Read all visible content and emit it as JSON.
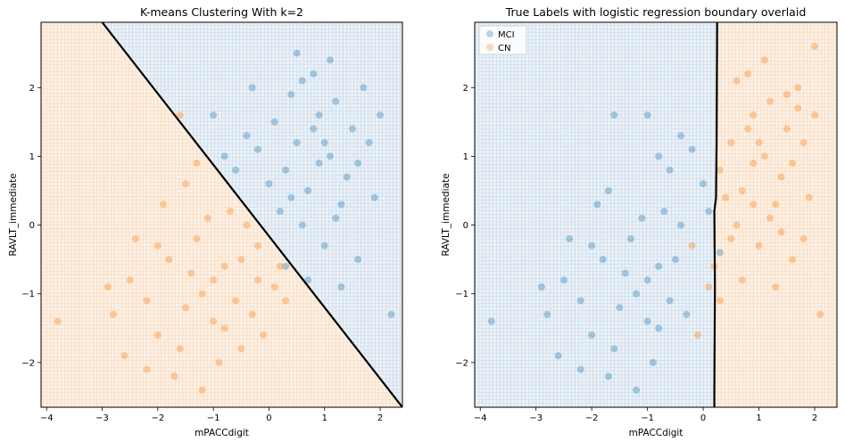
{
  "chart_data": [
    {
      "type": "scatter",
      "title": "K-means Clustering With k=2",
      "xlabel": "mPACCdigit",
      "ylabel": "RAVLT_immediate",
      "xlim": [
        -4.1,
        2.4
      ],
      "ylim": [
        -2.65,
        2.95
      ],
      "xticks": [
        -4,
        -3,
        -2,
        -1,
        0,
        1,
        2
      ],
      "yticks": [
        -2,
        -1,
        0,
        1,
        2
      ],
      "grid": false,
      "legend": "none",
      "boundary": {
        "type": "linear",
        "points": [
          [
            -3.0,
            2.95
          ],
          [
            2.4,
            -2.65
          ]
        ],
        "color": "#000000"
      },
      "regions": [
        {
          "side": "upper-right",
          "color": "#1f77b4"
        },
        {
          "side": "lower-left",
          "color": "#ff7f0e"
        }
      ],
      "series": [
        {
          "color": "#1f77b4",
          "values": [
            [
              0.3,
              0.8
            ],
            [
              0.5,
              1.2
            ],
            [
              0.7,
              0.5
            ],
            [
              0.9,
              1.6
            ],
            [
              1.1,
              1.0
            ],
            [
              1.3,
              0.3
            ],
            [
              0.4,
              1.9
            ],
            [
              0.8,
              2.2
            ],
            [
              1.2,
              1.8
            ],
            [
              1.5,
              1.4
            ],
            [
              1.7,
              2.0
            ],
            [
              0.2,
              0.2
            ],
            [
              0.0,
              0.6
            ],
            [
              -0.2,
              1.1
            ],
            [
              0.6,
              0.0
            ],
            [
              1.0,
              -0.3
            ],
            [
              1.4,
              0.7
            ],
            [
              1.6,
              -0.5
            ],
            [
              1.8,
              1.2
            ],
            [
              0.1,
              1.5
            ],
            [
              -0.4,
              1.3
            ],
            [
              0.9,
              0.9
            ],
            [
              1.1,
              2.4
            ],
            [
              0.3,
              -0.6
            ],
            [
              0.7,
              -0.8
            ],
            [
              1.3,
              -0.9
            ],
            [
              1.9,
              0.4
            ],
            [
              2.0,
              1.6
            ],
            [
              -0.6,
              0.8
            ],
            [
              0.5,
              2.5
            ],
            [
              -1.0,
              1.6
            ],
            [
              -0.8,
              1.0
            ],
            [
              1.2,
              0.1
            ],
            [
              0.4,
              0.4
            ],
            [
              0.8,
              1.4
            ],
            [
              1.6,
              0.9
            ],
            [
              2.2,
              -1.3
            ],
            [
              -0.3,
              2.0
            ],
            [
              0.6,
              2.1
            ],
            [
              1.0,
              1.2
            ]
          ]
        },
        {
          "color": "#ff7f0e",
          "values": [
            [
              -1.0,
              -0.8
            ],
            [
              -0.5,
              -0.5
            ],
            [
              -1.5,
              -1.2
            ],
            [
              -0.2,
              -0.3
            ],
            [
              -1.8,
              -0.5
            ],
            [
              -2.2,
              -1.1
            ],
            [
              -0.8,
              -1.5
            ],
            [
              -1.3,
              -0.2
            ],
            [
              -0.6,
              -1.1
            ],
            [
              -2.5,
              -0.8
            ],
            [
              -1.1,
              0.1
            ],
            [
              0.1,
              -0.9
            ],
            [
              -0.3,
              -1.3
            ],
            [
              -1.6,
              -1.8
            ],
            [
              -2.0,
              -1.6
            ],
            [
              -0.9,
              -2.0
            ],
            [
              -1.4,
              -0.7
            ],
            [
              -2.8,
              -1.3
            ],
            [
              -0.4,
              0.0
            ],
            [
              0.2,
              -0.6
            ],
            [
              -1.2,
              -1.0
            ],
            [
              -1.7,
              -2.2
            ],
            [
              -3.8,
              -1.4
            ],
            [
              -2.4,
              -0.2
            ],
            [
              -0.7,
              0.2
            ],
            [
              -1.9,
              0.3
            ],
            [
              -0.1,
              -1.6
            ],
            [
              -1.0,
              -1.4
            ],
            [
              -2.6,
              -1.9
            ],
            [
              0.3,
              -1.1
            ],
            [
              -1.5,
              0.6
            ],
            [
              -0.8,
              -0.6
            ],
            [
              -2.2,
              -2.1
            ],
            [
              -1.2,
              -2.4
            ],
            [
              -0.5,
              -1.8
            ],
            [
              -1.6,
              1.6
            ],
            [
              -2.9,
              -0.9
            ],
            [
              -1.3,
              0.9
            ],
            [
              -0.2,
              -0.8
            ],
            [
              -2.0,
              -0.3
            ]
          ]
        }
      ]
    },
    {
      "type": "scatter",
      "title": "True Labels with logistic regression boundary overlaid",
      "xlabel": "mPACCdigit",
      "ylabel": "RAVLT_immediate",
      "xlim": [
        -4.1,
        2.4
      ],
      "ylim": [
        -2.65,
        2.95
      ],
      "xticks": [
        -4,
        -3,
        -2,
        -1,
        0,
        1,
        2
      ],
      "yticks": [
        -2,
        -1,
        0,
        1,
        2
      ],
      "grid": false,
      "legend": "top-left",
      "boundary": {
        "type": "near-vertical",
        "points": [
          [
            0.2,
            -2.65
          ],
          [
            0.2,
            -2.4
          ],
          [
            0.21,
            -0.9
          ],
          [
            0.2,
            0.2
          ],
          [
            0.23,
            0.4
          ],
          [
            0.24,
            1.2
          ],
          [
            0.25,
            2.95
          ]
        ],
        "color": "#000000"
      },
      "regions": [
        {
          "side": "left",
          "color": "#1f77b4"
        },
        {
          "side": "right",
          "color": "#ff7f0e"
        }
      ],
      "series": [
        {
          "name": "MCI",
          "color": "#1f77b4",
          "values": [
            [
              -1.0,
              -0.8
            ],
            [
              -1.5,
              -1.2
            ],
            [
              -0.5,
              -0.5
            ],
            [
              -1.8,
              -0.5
            ],
            [
              -2.2,
              -1.1
            ],
            [
              -0.8,
              -1.5
            ],
            [
              -1.3,
              -0.2
            ],
            [
              -0.6,
              -1.1
            ],
            [
              -2.5,
              -0.8
            ],
            [
              -1.1,
              0.1
            ],
            [
              -0.3,
              -1.3
            ],
            [
              -1.6,
              -1.8
            ],
            [
              -2.0,
              -1.6
            ],
            [
              -0.9,
              -2.0
            ],
            [
              -1.4,
              -0.7
            ],
            [
              -2.8,
              -1.3
            ],
            [
              -0.4,
              0.0
            ],
            [
              -1.2,
              -1.0
            ],
            [
              -1.7,
              -2.2
            ],
            [
              -3.8,
              -1.4
            ],
            [
              -2.4,
              -0.2
            ],
            [
              -0.7,
              0.2
            ],
            [
              -1.9,
              0.3
            ],
            [
              -1.0,
              -1.4
            ],
            [
              -2.6,
              -1.9
            ],
            [
              -0.8,
              -0.6
            ],
            [
              -2.2,
              -2.1
            ],
            [
              -1.2,
              -2.4
            ],
            [
              -1.6,
              1.6
            ],
            [
              -2.9,
              -0.9
            ],
            [
              -1.0,
              1.6
            ],
            [
              -0.8,
              1.0
            ],
            [
              -0.2,
              1.1
            ],
            [
              0.0,
              0.6
            ],
            [
              -0.4,
              1.3
            ],
            [
              -1.7,
              0.5
            ],
            [
              0.1,
              0.2
            ],
            [
              -0.6,
              0.8
            ],
            [
              -2.0,
              -0.3
            ],
            [
              0.3,
              -0.4
            ]
          ]
        },
        {
          "name": "CN",
          "color": "#ff7f0e",
          "values": [
            [
              0.3,
              0.8
            ],
            [
              0.5,
              1.2
            ],
            [
              0.7,
              0.5
            ],
            [
              0.9,
              1.6
            ],
            [
              1.1,
              1.0
            ],
            [
              1.3,
              0.3
            ],
            [
              0.8,
              2.2
            ],
            [
              1.2,
              1.8
            ],
            [
              1.5,
              1.4
            ],
            [
              1.7,
              2.0
            ],
            [
              0.6,
              0.0
            ],
            [
              1.0,
              -0.3
            ],
            [
              1.4,
              0.7
            ],
            [
              1.6,
              -0.5
            ],
            [
              1.8,
              1.2
            ],
            [
              0.9,
              0.9
            ],
            [
              1.1,
              2.4
            ],
            [
              0.7,
              -0.8
            ],
            [
              1.3,
              -0.9
            ],
            [
              1.9,
              0.4
            ],
            [
              2.0,
              1.6
            ],
            [
              1.2,
              0.1
            ],
            [
              0.4,
              0.4
            ],
            [
              0.8,
              1.4
            ],
            [
              1.6,
              0.9
            ],
            [
              2.1,
              -1.3
            ],
            [
              0.6,
              2.1
            ],
            [
              1.0,
              1.2
            ],
            [
              0.2,
              -0.6
            ],
            [
              0.1,
              -0.9
            ],
            [
              -0.2,
              -0.3
            ],
            [
              -0.1,
              -1.6
            ],
            [
              0.5,
              -0.2
            ],
            [
              1.5,
              1.9
            ],
            [
              1.7,
              1.7
            ],
            [
              0.9,
              0.3
            ],
            [
              1.4,
              -0.1
            ],
            [
              0.3,
              -1.1
            ],
            [
              2.0,
              2.6
            ],
            [
              1.8,
              -0.2
            ]
          ]
        }
      ]
    }
  ]
}
